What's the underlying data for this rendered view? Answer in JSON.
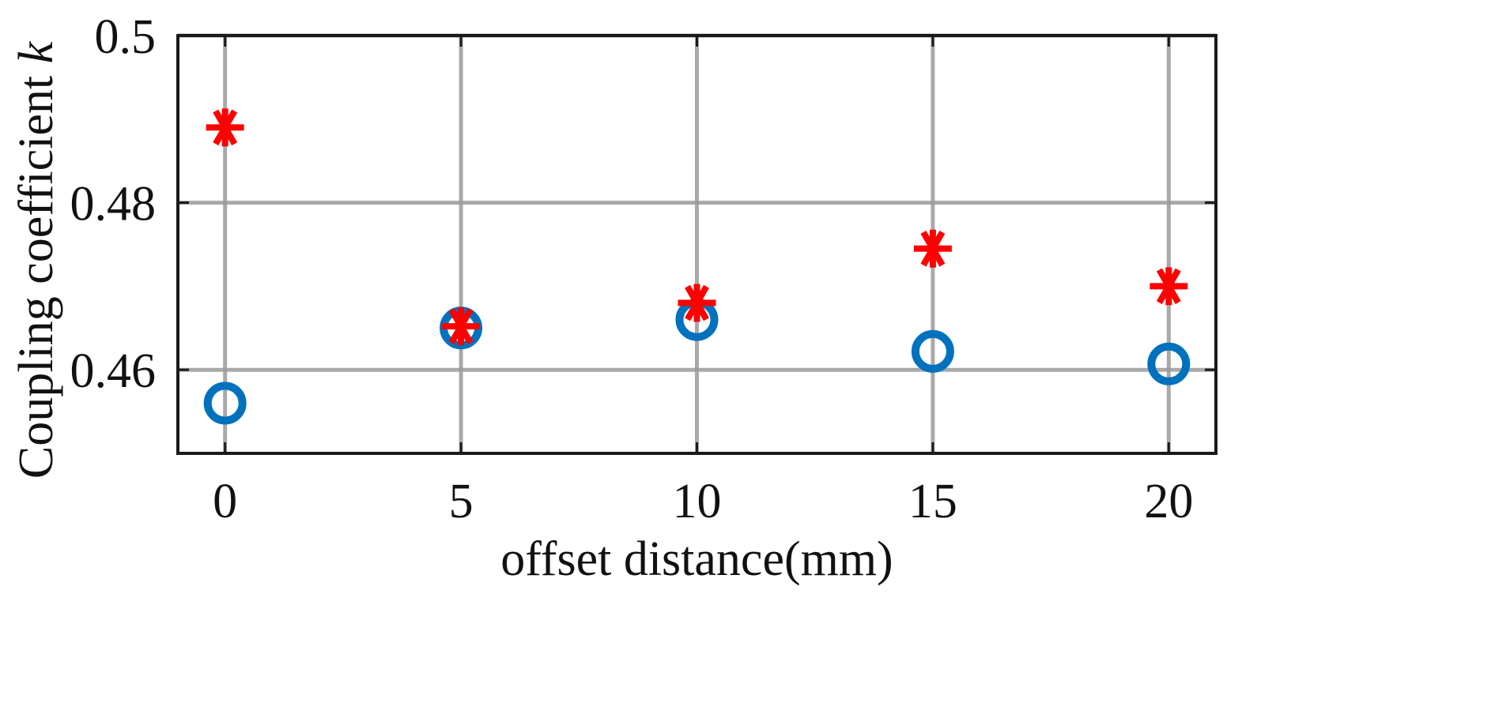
{
  "chart_data": {
    "type": "scatter",
    "title": "",
    "xlabel": "offset distance(mm)",
    "ylabel_text": "Coupling coefficient ",
    "ylabel_var": "k",
    "xlim": [
      -1,
      21
    ],
    "ylim": [
      0.45,
      0.5
    ],
    "xticks": [
      0,
      5,
      10,
      15,
      20
    ],
    "xtick_labels": [
      "0",
      "5",
      "10",
      "15",
      "20"
    ],
    "yticks": [
      0.46,
      0.48,
      0.5
    ],
    "ytick_labels": [
      "0.46",
      "0.48",
      "0.5"
    ],
    "grid": true,
    "legend": "none",
    "series": [
      {
        "marker": "asterisk",
        "color": "#ff0000",
        "x": [
          0,
          5,
          10,
          15,
          20
        ],
        "y": [
          0.489,
          0.4652,
          0.468,
          0.4745,
          0.47
        ]
      },
      {
        "marker": "circle",
        "color": "#0072bd",
        "x": [
          0,
          5,
          10,
          15,
          20
        ],
        "y": [
          0.456,
          0.465,
          0.466,
          0.4622,
          0.4607
        ]
      }
    ]
  }
}
